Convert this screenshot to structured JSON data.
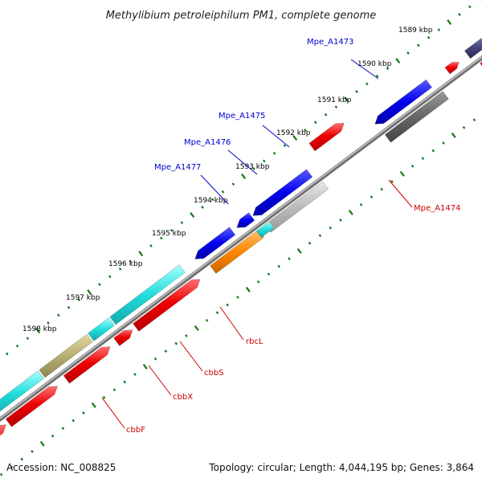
{
  "title": "Methylibium petroleiphilum PM1, complete genome",
  "footer": {
    "accession": "Accession: NC_008825",
    "summary": "Topology: circular; Length: 4,044,195 bp; Genes: 3,864"
  },
  "ticks": [
    "1589 kbp",
    "1590 kbp",
    "1591 kbp",
    "1592 kbp",
    "1593 kbp",
    "1594 kbp",
    "1595 kbp",
    "1596 kbp",
    "1597 kbp",
    "1598 kbp"
  ],
  "gene_labels": {
    "mpe_a1473": "Mpe_A1473",
    "mpe_a1475": "Mpe_A1475",
    "mpe_a1476": "Mpe_A1476",
    "mpe_a1477": "Mpe_A1477",
    "mpe_a1474": "Mpe_A1474",
    "rbcl": "rbcL",
    "cbbs": "cbbS",
    "cbbx": "cbbX",
    "cbbf": "cbbF"
  },
  "colors": {
    "backbone": "#8a8a8a",
    "forward_red": "#ee0000",
    "cyan": "#22dddd",
    "blue": "#0000ee",
    "orange": "#ff8800",
    "gray_dark": "#666666",
    "gray_light": "#bbbbbb",
    "olive": "#b8b070",
    "navy": "#44447a",
    "tick_green": "#117711"
  }
}
